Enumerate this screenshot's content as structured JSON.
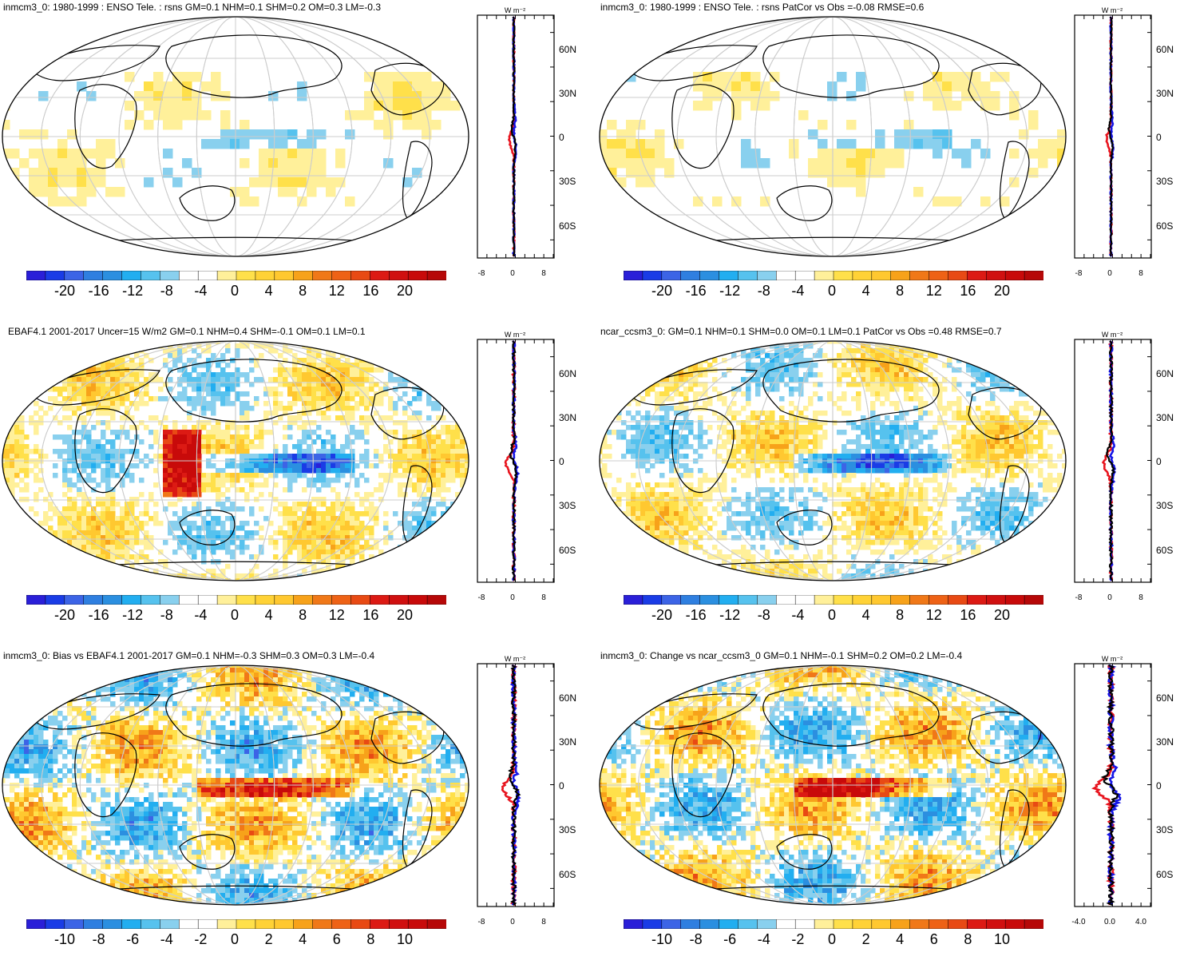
{
  "panels": [
    {
      "title": "inmcm3_0: 1980-1999 : ENSO Tele. : rsns GM=0.1 NHM=0.1 SHM=0.2 OM=0.3 LM=-0.3",
      "colorbar_labels": [
        "-20",
        "-16",
        "-12",
        "-8",
        "-4",
        "0",
        "4",
        "8",
        "12",
        "16",
        "20"
      ],
      "zonal_unit": "W m⁻²",
      "zonal_x_labels": [
        "-8",
        "0",
        "8"
      ],
      "zonal_lat_labels": [
        "60N",
        "30N",
        "0",
        "30S",
        "60S"
      ]
    },
    {
      "title": "inmcm3_0: 1980-1999 : ENSO Tele. : rsns PatCor vs Obs =-0.08 RMSE=0.6",
      "colorbar_labels": [
        "-20",
        "-16",
        "-12",
        "-8",
        "-4",
        "0",
        "4",
        "8",
        "12",
        "16",
        "20"
      ],
      "zonal_unit": "W m⁻²",
      "zonal_x_labels": [
        "-8",
        "0",
        "8"
      ],
      "zonal_lat_labels": [
        "60N",
        "30N",
        "0",
        "30S",
        "60S"
      ]
    },
    {
      "title": "EBAF4.1 2001-2017 Uncer=15 W/m2 GM=0.1 NHM=0.4 SHM=-0.1 OM=0.1 LM=0.1",
      "colorbar_labels": [
        "-20",
        "-16",
        "-12",
        "-8",
        "-4",
        "0",
        "4",
        "8",
        "12",
        "16",
        "20"
      ],
      "zonal_unit": "W m⁻²",
      "zonal_x_labels": [
        "-8",
        "0",
        "8"
      ],
      "zonal_lat_labels": [
        "60N",
        "30N",
        "0",
        "30S",
        "60S"
      ]
    },
    {
      "title": "ncar_ccsm3_0: GM=0.1 NHM=0.1 SHM=0.0 OM=0.1 LM=0.1 PatCor vs Obs =0.48 RMSE=0.7",
      "colorbar_labels": [
        "-20",
        "-16",
        "-12",
        "-8",
        "-4",
        "0",
        "4",
        "8",
        "12",
        "16",
        "20"
      ],
      "zonal_unit": "W m⁻²",
      "zonal_x_labels": [
        "-8",
        "0",
        "8"
      ],
      "zonal_lat_labels": [
        "60N",
        "30N",
        "0",
        "30S",
        "60S"
      ]
    },
    {
      "title": "inmcm3_0: Bias vs EBAF4.1 2001-2017 GM=0.1 NHM=-0.3 SHM=0.3 OM=0.3 LM=-0.4",
      "colorbar_labels": [
        "-10",
        "-8",
        "-6",
        "-4",
        "-2",
        "0",
        "2",
        "4",
        "6",
        "8",
        "10"
      ],
      "zonal_unit": "W m⁻²",
      "zonal_x_labels": [
        "-8",
        "0",
        "8"
      ],
      "zonal_lat_labels": [
        "60N",
        "30N",
        "0",
        "30S",
        "60S"
      ]
    },
    {
      "title": "inmcm3_0: Change vs ncar_ccsm3_0 GM=0.1 NHM=-0.1 SHM=0.2 OM=0.2 LM=-0.4",
      "colorbar_labels": [
        "-10",
        "-8",
        "-6",
        "-4",
        "-2",
        "0",
        "2",
        "4",
        "6",
        "8",
        "10"
      ],
      "zonal_unit": "W m⁻²",
      "zonal_x_labels": [
        "-4.0",
        "0.0",
        "4.0"
      ],
      "zonal_lat_labels": [
        "60N",
        "30N",
        "0",
        "30S",
        "60S"
      ]
    }
  ],
  "colors": {
    "palette": [
      "#2a1fd8",
      "#1a3ce6",
      "#3c64e6",
      "#2b8fe0",
      "#22aef0",
      "#56c2ee",
      "#89d0ee",
      "#ffffff",
      "#ffffff",
      "#fff09a",
      "#ffe04a",
      "#ffc830",
      "#f7a21a",
      "#f07818",
      "#e84a14",
      "#dc1a14",
      "#c80a0a"
    ],
    "land_outline": "#000000",
    "grid": "#cccccc",
    "zonal_series": [
      "#e8141e",
      "#1414e6",
      "#000000"
    ]
  }
}
